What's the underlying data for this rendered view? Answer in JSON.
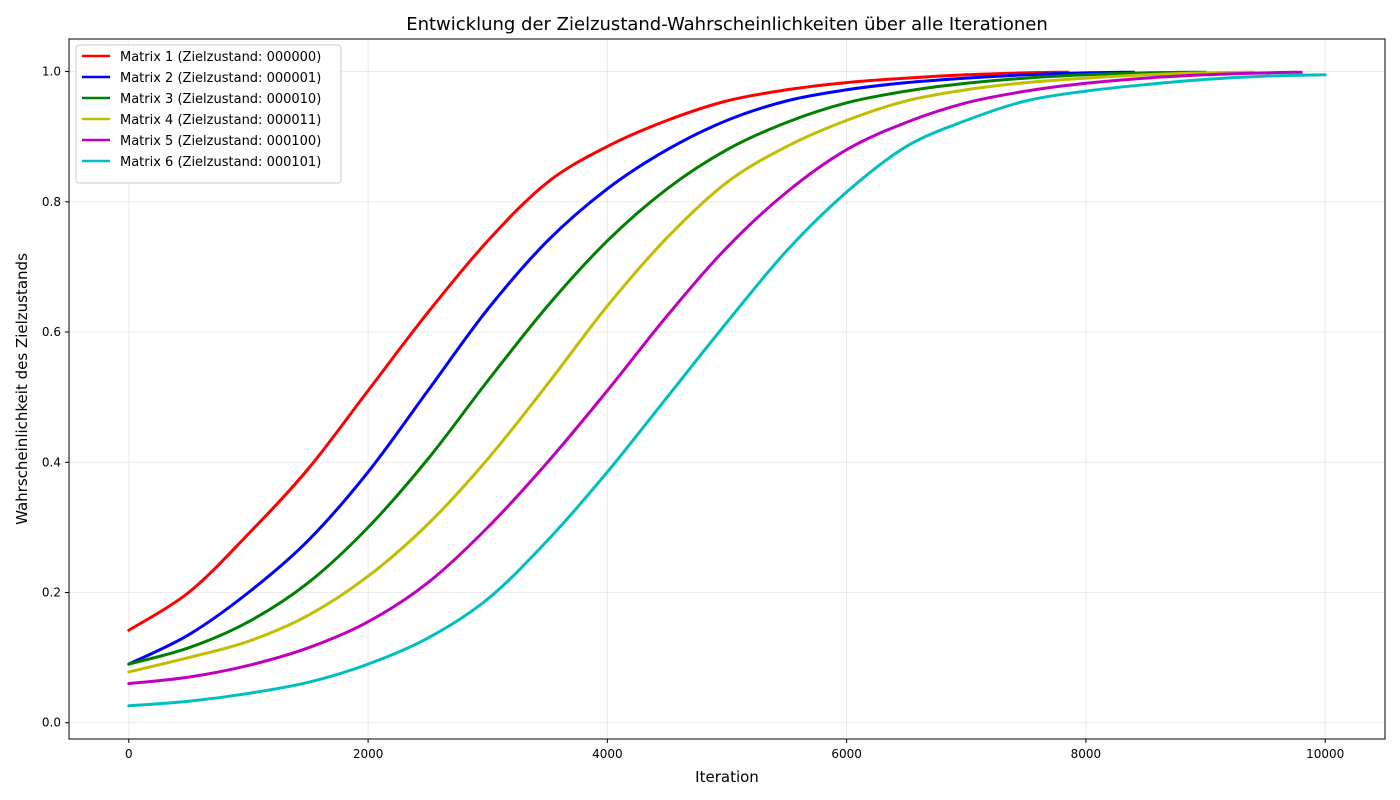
{
  "chart_data": {
    "type": "line",
    "title": "Entwicklung der Zielzustand-Wahrscheinlichkeiten über alle Iterationen",
    "xlabel": "Iteration",
    "ylabel": "Wahrscheinlichkeit des Zielzustands",
    "xlim": [
      -500,
      10500
    ],
    "ylim": [
      -0.025,
      1.05
    ],
    "xticks": [
      0,
      2000,
      4000,
      6000,
      8000,
      10000
    ],
    "xtick_labels": [
      "0",
      "2000",
      "4000",
      "6000",
      "8000",
      "10000"
    ],
    "yticks": [
      0.0,
      0.2,
      0.4,
      0.6,
      0.8,
      1.0
    ],
    "ytick_labels": [
      "0.0",
      "0.2",
      "0.4",
      "0.6",
      "0.8",
      "1.0"
    ],
    "grid": true,
    "legend_position": "top-left",
    "series": [
      {
        "name": "Matrix 1 (Zielzustand: 000000)",
        "color": "#ff0000",
        "x": [
          0,
          500,
          1000,
          1500,
          2000,
          2500,
          3000,
          3500,
          4000,
          4500,
          5000,
          5500,
          6000,
          6500,
          7000,
          7500,
          7850
        ],
        "y": [
          0.142,
          0.2,
          0.29,
          0.39,
          0.51,
          0.63,
          0.74,
          0.83,
          0.885,
          0.925,
          0.955,
          0.972,
          0.983,
          0.99,
          0.995,
          0.998,
          0.999
        ]
      },
      {
        "name": "Matrix 2 (Zielzustand: 000001)",
        "color": "#0000ff",
        "x": [
          0,
          500,
          1000,
          1500,
          2000,
          2500,
          3000,
          3500,
          4000,
          4500,
          5000,
          5500,
          6000,
          6500,
          7000,
          7500,
          8000,
          8400
        ],
        "y": [
          0.09,
          0.135,
          0.2,
          0.28,
          0.385,
          0.51,
          0.635,
          0.74,
          0.82,
          0.88,
          0.925,
          0.955,
          0.972,
          0.983,
          0.99,
          0.995,
          0.998,
          0.999
        ]
      },
      {
        "name": "Matrix 3 (Zielzustand: 000010)",
        "color": "#008000",
        "x": [
          0,
          500,
          1000,
          1500,
          2000,
          2500,
          3000,
          3500,
          4000,
          4500,
          5000,
          5500,
          6000,
          6500,
          7000,
          7500,
          8000,
          8500,
          9000
        ],
        "y": [
          0.09,
          0.115,
          0.155,
          0.215,
          0.3,
          0.405,
          0.525,
          0.64,
          0.74,
          0.82,
          0.88,
          0.922,
          0.952,
          0.97,
          0.982,
          0.99,
          0.995,
          0.998,
          0.999
        ]
      },
      {
        "name": "Matrix 4 (Zielzustand: 000011)",
        "color": "#bfbf00",
        "x": [
          0,
          500,
          1000,
          1500,
          2000,
          2500,
          3000,
          3500,
          4000,
          4500,
          5000,
          5500,
          6000,
          6500,
          7000,
          7500,
          8000,
          8500,
          9000,
          9400
        ],
        "y": [
          0.078,
          0.1,
          0.125,
          0.165,
          0.225,
          0.305,
          0.405,
          0.52,
          0.64,
          0.745,
          0.83,
          0.885,
          0.925,
          0.955,
          0.972,
          0.983,
          0.99,
          0.995,
          0.998,
          0.999
        ]
      },
      {
        "name": "Matrix 5 (Zielzustand: 000100)",
        "color": "#bf00bf",
        "x": [
          0,
          500,
          1000,
          1500,
          2000,
          2500,
          3000,
          3500,
          4000,
          4500,
          5000,
          5500,
          6000,
          6500,
          7000,
          7500,
          8000,
          8500,
          9000,
          9500,
          9800
        ],
        "y": [
          0.06,
          0.07,
          0.088,
          0.115,
          0.155,
          0.215,
          0.3,
          0.4,
          0.51,
          0.625,
          0.73,
          0.815,
          0.88,
          0.922,
          0.952,
          0.97,
          0.982,
          0.99,
          0.995,
          0.998,
          0.999
        ]
      },
      {
        "name": "Matrix 6 (Zielzustand: 000101)",
        "color": "#00bfbf",
        "x": [
          0,
          500,
          1000,
          1500,
          2000,
          2500,
          3000,
          3500,
          4000,
          4500,
          5000,
          5500,
          6000,
          6500,
          7000,
          7500,
          8000,
          8500,
          9000,
          9500,
          10000
        ],
        "y": [
          0.026,
          0.033,
          0.045,
          0.062,
          0.09,
          0.13,
          0.19,
          0.28,
          0.385,
          0.5,
          0.615,
          0.725,
          0.815,
          0.885,
          0.925,
          0.955,
          0.97,
          0.98,
          0.988,
          0.993,
          0.995
        ]
      }
    ]
  }
}
